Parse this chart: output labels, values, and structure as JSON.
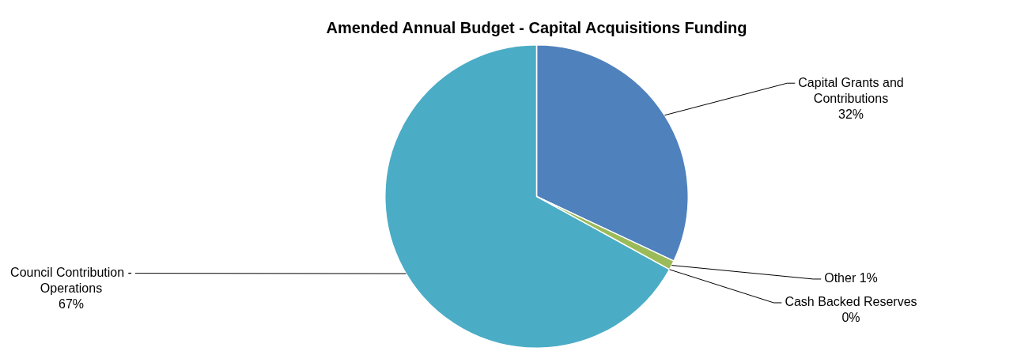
{
  "chart_data": {
    "type": "pie",
    "title": "Amended Annual Budget - Capital Acquisitions Funding",
    "categories": [
      "Capital Grants and Contributions",
      "Other",
      "Cash Backed Reserves",
      "Council Contribution - Operations"
    ],
    "values": [
      32,
      1,
      0,
      67
    ],
    "colors": [
      "#4f81bd",
      "#9bbb59",
      "#c0504d",
      "#4bacc6"
    ],
    "value_labels": [
      "32%",
      "1%",
      "0%",
      "67%"
    ],
    "legend": false
  }
}
